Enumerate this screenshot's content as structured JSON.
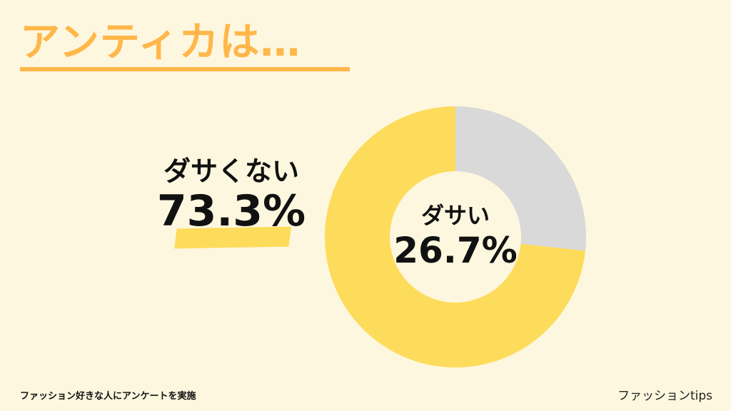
{
  "title": "アンティカは…",
  "chart_data": {
    "type": "pie",
    "categories": [
      "ダサい",
      "ダサくない"
    ],
    "values": [
      26.7,
      73.3
    ],
    "colors": [
      "#d9d9d9",
      "#fddc5c"
    ],
    "labels": {
      "not_uncool": {
        "text": "ダサくない",
        "value": "73.3%"
      },
      "uncool": {
        "text": "ダサい",
        "value": "26.7%"
      }
    }
  },
  "footer": {
    "source": "ファッション好きな人にアンケートを実施",
    "brand": "ファッションtips"
  }
}
